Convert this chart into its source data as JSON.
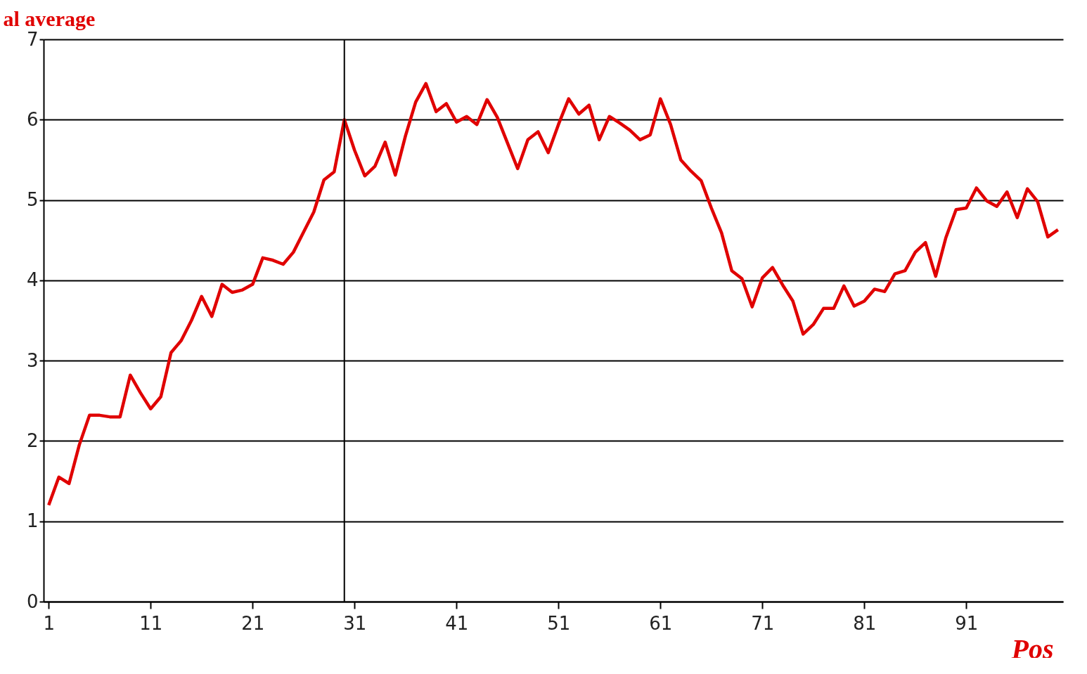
{
  "chart_data": {
    "type": "line",
    "ylabel": "al average",
    "xlabel": "Pos",
    "x": [
      1,
      2,
      3,
      4,
      5,
      6,
      7,
      8,
      9,
      10,
      11,
      12,
      13,
      14,
      15,
      16,
      17,
      18,
      19,
      20,
      21,
      22,
      23,
      24,
      25,
      26,
      27,
      28,
      29,
      30,
      31,
      32,
      33,
      34,
      35,
      36,
      37,
      38,
      39,
      40,
      41,
      42,
      43,
      44,
      45,
      46,
      47,
      48,
      49,
      50,
      51,
      52,
      53,
      54,
      55,
      56,
      57,
      58,
      59,
      60,
      61,
      62,
      63,
      64,
      65,
      66,
      67,
      68,
      69,
      70,
      71,
      72,
      73,
      74,
      75,
      76,
      77,
      78,
      79,
      80,
      81,
      82,
      83,
      84,
      85,
      86,
      87,
      88,
      89,
      90,
      91,
      92,
      93,
      94,
      95,
      96,
      97,
      98,
      99,
      100
    ],
    "series": [
      {
        "color": "#e00000",
        "values": [
          1.2,
          1.55,
          1.47,
          1.95,
          2.32,
          2.32,
          2.3,
          2.3,
          2.82,
          2.6,
          2.4,
          2.55,
          3.1,
          3.25,
          3.5,
          3.8,
          3.55,
          3.95,
          3.85,
          3.88,
          3.95,
          4.28,
          4.25,
          4.2,
          4.35,
          4.6,
          4.85,
          5.25,
          5.35,
          6.0,
          5.62,
          5.3,
          5.42,
          5.72,
          5.31,
          5.8,
          6.22,
          6.45,
          6.1,
          6.2,
          5.97,
          6.04,
          5.94,
          6.25,
          6.03,
          5.71,
          5.39,
          5.75,
          5.85,
          5.59,
          5.94,
          6.26,
          6.07,
          6.18,
          5.75,
          6.04,
          5.96,
          5.87,
          5.75,
          5.81,
          6.26,
          5.94,
          5.5,
          5.36,
          5.24,
          4.9,
          4.59,
          4.12,
          4.02,
          3.67,
          4.03,
          4.16,
          3.94,
          3.74,
          3.33,
          3.45,
          3.65,
          3.65,
          3.93,
          3.68,
          3.74,
          3.89,
          3.86,
          4.08,
          4.12,
          4.35,
          4.47,
          4.05,
          4.53,
          4.88,
          4.9,
          5.15,
          4.99,
          4.92,
          5.1,
          4.78,
          5.14,
          4.98,
          4.54,
          4.63
        ]
      }
    ],
    "xlim": [
      0.5,
      100.5
    ],
    "xticks": [
      1,
      11,
      21,
      31,
      41,
      51,
      61,
      71,
      81,
      91
    ],
    "ylim": [
      0,
      7
    ],
    "yticks": [
      0,
      1,
      2,
      3,
      4,
      5,
      6,
      7
    ],
    "grid": "y",
    "marker": "none",
    "line_style": "solid",
    "ref_lines": [
      {
        "axis": "x",
        "value": 30,
        "color": "#000000"
      }
    ]
  }
}
